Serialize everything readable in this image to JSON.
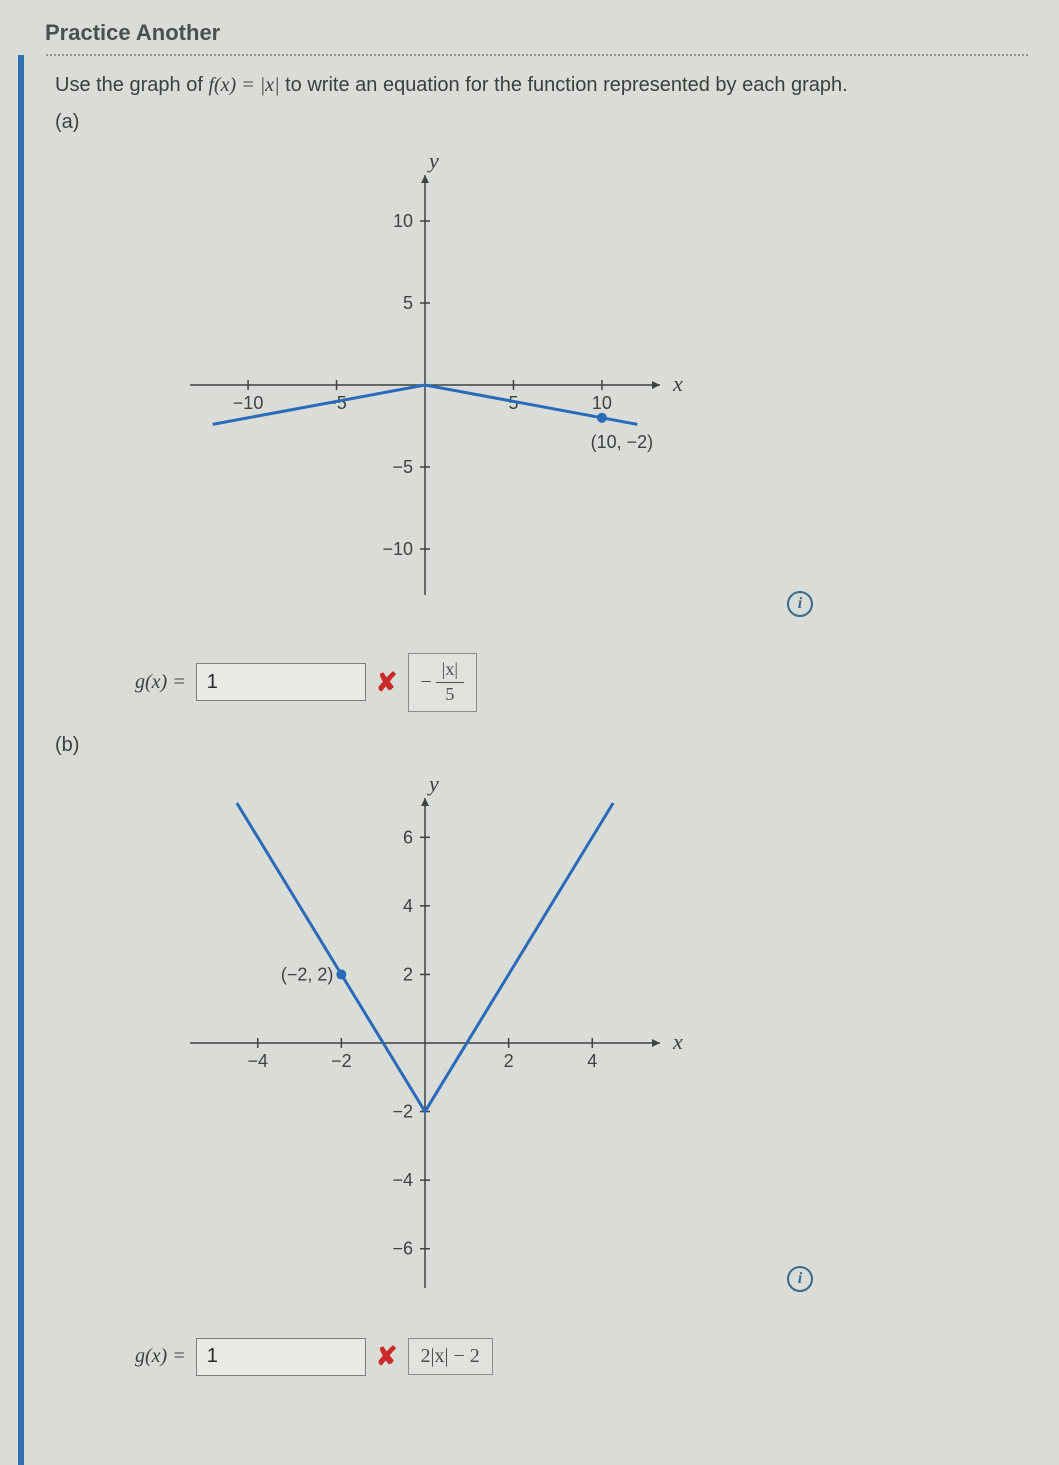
{
  "header": {
    "practice_link": "Practice Another"
  },
  "prompt": {
    "pre": "Use the graph of ",
    "fx": "f(x) = |x|",
    "post": " to write an equation for the function represented by each graph."
  },
  "part_a": {
    "label": "(a)",
    "gx_prefix": "g(x) = ",
    "input_value": "1",
    "solution_neg": "−",
    "solution_num": "|x|",
    "solution_den": "5",
    "chart": {
      "type": "line",
      "x_axis_label": "x",
      "y_axis_label": "y",
      "xlim": [
        -13,
        13
      ],
      "ylim": [
        -12.5,
        12.5
      ],
      "xticks": [
        {
          "v": -10,
          "l": "−10"
        },
        {
          "v": -5,
          "l": "−5"
        },
        {
          "v": 5,
          "l": "5"
        },
        {
          "v": 10,
          "l": "10"
        }
      ],
      "yticks": [
        {
          "v": -10,
          "l": "−10"
        },
        {
          "v": -5,
          "l": "−5"
        },
        {
          "v": 5,
          "l": "5"
        },
        {
          "v": 10,
          "l": "10"
        }
      ],
      "line_color": "#2a6ab8",
      "axis_color": "#3d4242",
      "background": "#d9dcd7",
      "points": [
        [
          -12,
          -2.4
        ],
        [
          0,
          0
        ],
        [
          12,
          -2.4
        ]
      ],
      "marker_point": [
        10,
        -2
      ],
      "marker_label": "(10, −2)"
    }
  },
  "part_b": {
    "label": "(b)",
    "gx_prefix": "g(x) = ",
    "input_value": "1",
    "solution_text": "2|x| − 2",
    "chart": {
      "type": "line",
      "x_axis_label": "x",
      "y_axis_label": "y",
      "xlim": [
        -5.5,
        5.5
      ],
      "ylim": [
        -7,
        7
      ],
      "xticks": [
        {
          "v": -4,
          "l": "−4"
        },
        {
          "v": -2,
          "l": "−2"
        },
        {
          "v": 2,
          "l": "2"
        },
        {
          "v": 4,
          "l": "4"
        }
      ],
      "yticks": [
        {
          "v": -6,
          "l": "−6"
        },
        {
          "v": -4,
          "l": "−4"
        },
        {
          "v": -2,
          "l": "−2"
        },
        {
          "v": 2,
          "l": "2"
        },
        {
          "v": 4,
          "l": "4"
        },
        {
          "v": 6,
          "l": "6"
        }
      ],
      "line_color": "#2a6ab8",
      "axis_color": "#3d4242",
      "background": "#d9dcd7",
      "points": [
        [
          -4.5,
          7
        ],
        [
          0,
          -2
        ],
        [
          4.5,
          7
        ]
      ],
      "marker_point": [
        -2,
        2
      ],
      "marker_label": "(−2, 2)"
    }
  },
  "info_glyph": "i"
}
